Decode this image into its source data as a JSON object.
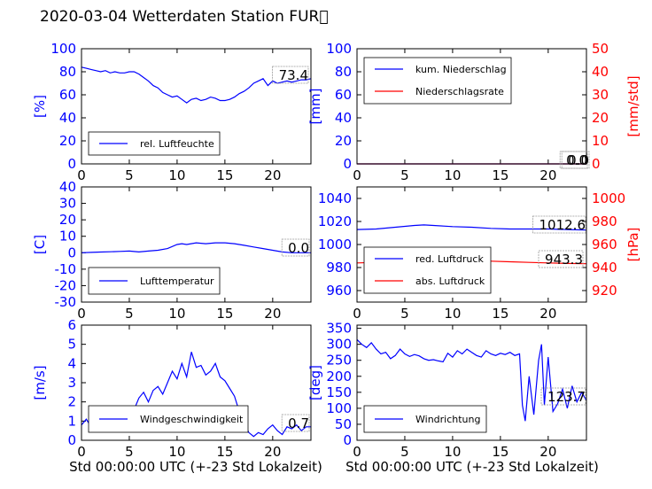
{
  "title": "2020-03-04 Wetterdaten Station FUR\u0000",
  "xlabel": "Std 00:00:00 UTC (+-23 Std Lokalzeit)",
  "colors": {
    "blue": "#0000ff",
    "red": "#ff0000",
    "lightblue": "#8888ff"
  },
  "chart_data": [
    {
      "type": "line",
      "ylabel": "[%]",
      "xlim": [
        0,
        24
      ],
      "xticks": [
        0,
        5,
        10,
        15,
        20
      ],
      "ylim": [
        0,
        100
      ],
      "yticks": [
        0,
        20,
        40,
        60,
        80,
        100
      ],
      "annotations": [
        "73.4"
      ],
      "series": [
        {
          "name": "rel. Luftfeuchte",
          "color": "#0000ff",
          "x": [
            0,
            0.5,
            1,
            1.5,
            2,
            2.5,
            3,
            3.5,
            4,
            4.5,
            5,
            5.5,
            6,
            6.5,
            7,
            7.5,
            8,
            8.5,
            9,
            9.5,
            10,
            10.5,
            11,
            11.5,
            12,
            12.5,
            13,
            13.5,
            14,
            14.5,
            15,
            15.5,
            16,
            16.5,
            17,
            17.5,
            18,
            18.5,
            19,
            19.5,
            20,
            20.5,
            21,
            21.5,
            22,
            22.5,
            23,
            23.5,
            24
          ],
          "y": [
            84,
            83,
            82,
            81,
            80,
            81,
            79,
            80,
            79,
            79,
            80,
            80,
            78,
            75,
            72,
            68,
            66,
            62,
            60,
            58,
            59,
            56,
            53,
            56,
            57,
            55,
            56,
            58,
            57,
            55,
            55,
            56,
            58,
            61,
            63,
            66,
            70,
            72,
            74,
            68,
            72,
            70,
            71,
            72,
            71,
            72,
            73,
            73,
            74
          ]
        }
      ]
    },
    {
      "type": "line",
      "ylabel": "[mm]",
      "ylabel2": "[mm/std]",
      "xlim": [
        0,
        24
      ],
      "xticks": [
        0,
        5,
        10,
        15,
        20
      ],
      "ylim": [
        0,
        100
      ],
      "yticks": [
        0,
        20,
        40,
        60,
        80,
        100
      ],
      "ylim2": [
        0,
        50
      ],
      "yticks2": [
        0,
        10,
        20,
        30,
        40,
        50
      ],
      "annotations": [
        "0.0",
        "0.0"
      ],
      "series": [
        {
          "name": "kum. Niederschlag",
          "color": "#0000ff",
          "axis": "left",
          "x": [
            0,
            24
          ],
          "y": [
            0,
            0
          ]
        },
        {
          "name": "Niederschlagsrate",
          "color": "#ff0000",
          "axis": "right",
          "x": [
            0,
            24
          ],
          "y": [
            0,
            0
          ]
        }
      ]
    },
    {
      "type": "line",
      "ylabel": "[C]",
      "xlim": [
        0,
        24
      ],
      "xticks": [
        0,
        5,
        10,
        15,
        20
      ],
      "ylim": [
        -30,
        40
      ],
      "yticks": [
        -30,
        -20,
        -10,
        0,
        10,
        20,
        30,
        40
      ],
      "annotations": [
        "0.0"
      ],
      "series": [
        {
          "name": "Lufttemperatur",
          "color": "#0000ff",
          "x": [
            0,
            1,
            2,
            3,
            4,
            5,
            6,
            7,
            8,
            9,
            10,
            10.5,
            11,
            12,
            13,
            14,
            15,
            16,
            17,
            18,
            19,
            20,
            21,
            22,
            23,
            24
          ],
          "y": [
            0,
            0.2,
            0.4,
            0.6,
            0.8,
            1,
            0.5,
            1,
            1.5,
            2.5,
            5,
            5.5,
            5,
            6,
            5.5,
            6,
            6,
            5.5,
            4.5,
            3.5,
            2.5,
            1.5,
            0.5,
            0,
            0,
            0
          ]
        }
      ]
    },
    {
      "type": "line",
      "ylabel2": "[hPa]",
      "xlim": [
        0,
        24
      ],
      "xticks": [
        0,
        5,
        10,
        15,
        20
      ],
      "ylim": [
        950,
        1050
      ],
      "yticks": [
        960,
        980,
        1000,
        1020,
        1040
      ],
      "ylim2": [
        910,
        1010
      ],
      "yticks2": [
        920,
        940,
        960,
        980,
        1000
      ],
      "annotations": [
        "1012.6",
        "943.3"
      ],
      "series": [
        {
          "name": "red. Luftdruck",
          "color": "#0000ff",
          "axis": "left",
          "x": [
            0,
            2,
            4,
            6,
            7,
            8,
            10,
            12,
            14,
            16,
            18,
            20,
            22,
            24
          ],
          "y": [
            1013,
            1013.5,
            1015,
            1016.5,
            1017,
            1016.5,
            1015.5,
            1015,
            1014,
            1013.5,
            1013.5,
            1013.5,
            1013,
            1012.6
          ]
        },
        {
          "name": "abs. Luftdruck",
          "color": "#ff0000",
          "axis": "right",
          "x": [
            0,
            2,
            4,
            6,
            8,
            10,
            12,
            14,
            16,
            18,
            20,
            22,
            24
          ],
          "y": [
            944,
            944.5,
            945.5,
            946.5,
            947,
            946.5,
            946,
            945.5,
            945,
            944.5,
            944,
            943.5,
            943.3
          ]
        }
      ]
    },
    {
      "type": "line",
      "ylabel": "[m/s]",
      "xlim": [
        0,
        24
      ],
      "xticks": [
        0,
        5,
        10,
        15,
        20
      ],
      "ylim": [
        0,
        6
      ],
      "yticks": [
        0,
        1,
        2,
        3,
        4,
        5,
        6
      ],
      "annotations": [
        "0.7"
      ],
      "series": [
        {
          "name": "Windgeschwindigkeit",
          "color": "#0000ff",
          "x": [
            0,
            0.5,
            1,
            1.5,
            2,
            2.5,
            3,
            3.5,
            4,
            4.5,
            5,
            5.5,
            6,
            6.5,
            7,
            7.5,
            8,
            8.5,
            9,
            9.5,
            10,
            10.5,
            11,
            11.5,
            12,
            12.5,
            13,
            13.5,
            14,
            14.5,
            15,
            15.5,
            16,
            16.5,
            17,
            17.5,
            18,
            18.5,
            19,
            19.5,
            20,
            20.5,
            21,
            21.5,
            22,
            22.5,
            23,
            23.5,
            24
          ],
          "y": [
            0.8,
            1.1,
            0.7,
            1.0,
            0.9,
            0.6,
            0.9,
            0.8,
            0.7,
            1.0,
            1.2,
            1.6,
            2.2,
            2.5,
            2.0,
            2.6,
            2.8,
            2.4,
            3.0,
            3.6,
            3.2,
            4.0,
            3.3,
            4.6,
            3.8,
            3.9,
            3.4,
            3.6,
            4.0,
            3.3,
            3.1,
            2.7,
            2.3,
            1.5,
            0.9,
            0.4,
            0.2,
            0.4,
            0.3,
            0.6,
            0.8,
            0.5,
            0.3,
            0.7,
            0.6,
            0.8,
            0.5,
            0.7,
            0.7
          ]
        }
      ]
    },
    {
      "type": "line",
      "ylabel": "[deg]",
      "xlim": [
        0,
        24
      ],
      "xticks": [
        0,
        5,
        10,
        15,
        20
      ],
      "ylim": [
        0,
        360
      ],
      "yticks": [
        0,
        50,
        100,
        150,
        200,
        250,
        300,
        350
      ],
      "annotations": [
        "123.7"
      ],
      "series": [
        {
          "name": "Windrichtung",
          "color": "#0000ff",
          "x": [
            0,
            0.5,
            1,
            1.5,
            2,
            2.5,
            3,
            3.5,
            4,
            4.5,
            5,
            5.5,
            6,
            6.5,
            7,
            7.5,
            8,
            8.5,
            9,
            9.5,
            10,
            10.5,
            11,
            11.5,
            12,
            12.5,
            13,
            13.5,
            14,
            14.5,
            15,
            15.5,
            16,
            16.5,
            17,
            17.3,
            17.6,
            18,
            18.5,
            19,
            19.3,
            19.6,
            20,
            20.5,
            21,
            21.5,
            22,
            22.5,
            23,
            23.5,
            24
          ],
          "y": [
            315,
            300,
            290,
            305,
            285,
            270,
            275,
            255,
            265,
            285,
            270,
            262,
            268,
            264,
            255,
            250,
            252,
            248,
            245,
            272,
            260,
            280,
            270,
            285,
            275,
            265,
            260,
            280,
            270,
            265,
            272,
            268,
            275,
            265,
            270,
            110,
            60,
            200,
            80,
            250,
            300,
            110,
            260,
            90,
            115,
            160,
            100,
            170,
            120,
            150,
            124
          ]
        }
      ]
    }
  ]
}
